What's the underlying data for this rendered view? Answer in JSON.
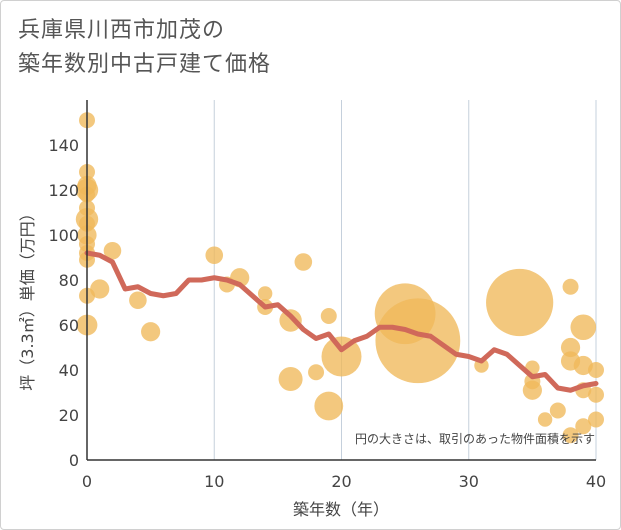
{
  "chart_data": {
    "type": "scatter",
    "title": [
      "兵庫県川西市加茂の",
      "築年数別中古戸建て価格"
    ],
    "xlabel": "築年数（年）",
    "ylabel": "坪（3.3㎡）単価（万円）",
    "xlim": [
      0,
      40
    ],
    "ylim": [
      0,
      160
    ],
    "x_ticks": [
      0,
      10,
      20,
      30,
      40
    ],
    "y_ticks": [
      0,
      20,
      40,
      60,
      80,
      100,
      120,
      140
    ],
    "grid": true,
    "note": "円の大きさは、取引のあった物件面積を示す",
    "colors": {
      "bubble": "#f0b85a",
      "trend": "#d0695a",
      "grid": "#c5d0dc",
      "axis": "#333333"
    },
    "bubbles": [
      {
        "x": 0,
        "y": 151,
        "s": 1
      },
      {
        "x": 0,
        "y": 128,
        "s": 1
      },
      {
        "x": 0,
        "y": 122,
        "s": 1.2
      },
      {
        "x": 0,
        "y": 120,
        "s": 1.4
      },
      {
        "x": 0,
        "y": 118,
        "s": 1
      },
      {
        "x": 0,
        "y": 112,
        "s": 1
      },
      {
        "x": 0,
        "y": 107,
        "s": 1.4
      },
      {
        "x": 0,
        "y": 105,
        "s": 1
      },
      {
        "x": 0,
        "y": 100,
        "s": 1.2
      },
      {
        "x": 0,
        "y": 96,
        "s": 1
      },
      {
        "x": 0,
        "y": 92,
        "s": 1
      },
      {
        "x": 0,
        "y": 89,
        "s": 1
      },
      {
        "x": 0,
        "y": 73,
        "s": 1
      },
      {
        "x": 0,
        "y": 60,
        "s": 1.3
      },
      {
        "x": 1,
        "y": 76,
        "s": 1.2
      },
      {
        "x": 2,
        "y": 93,
        "s": 1.1
      },
      {
        "x": 4,
        "y": 71,
        "s": 1.1
      },
      {
        "x": 5,
        "y": 57,
        "s": 1.2
      },
      {
        "x": 10,
        "y": 91,
        "s": 1.1
      },
      {
        "x": 11,
        "y": 78,
        "s": 1
      },
      {
        "x": 12,
        "y": 81,
        "s": 1.2
      },
      {
        "x": 14,
        "y": 74,
        "s": 0.9
      },
      {
        "x": 14,
        "y": 68,
        "s": 1
      },
      {
        "x": 16,
        "y": 62,
        "s": 1.4
      },
      {
        "x": 16,
        "y": 36,
        "s": 1.5
      },
      {
        "x": 17,
        "y": 88,
        "s": 1.1
      },
      {
        "x": 18,
        "y": 39,
        "s": 1
      },
      {
        "x": 19,
        "y": 64,
        "s": 1
      },
      {
        "x": 19,
        "y": 24,
        "s": 1.8
      },
      {
        "x": 20,
        "y": 46,
        "s": 2.5
      },
      {
        "x": 25,
        "y": 65,
        "s": 3.8
      },
      {
        "x": 26,
        "y": 53,
        "s": 5.3
      },
      {
        "x": 31,
        "y": 42,
        "s": 0.9
      },
      {
        "x": 34,
        "y": 70,
        "s": 4.2
      },
      {
        "x": 35,
        "y": 41,
        "s": 0.9
      },
      {
        "x": 35,
        "y": 35,
        "s": 1
      },
      {
        "x": 35,
        "y": 31,
        "s": 1.2
      },
      {
        "x": 36,
        "y": 18,
        "s": 0.9
      },
      {
        "x": 37,
        "y": 22,
        "s": 1
      },
      {
        "x": 38,
        "y": 77,
        "s": 1
      },
      {
        "x": 38,
        "y": 50,
        "s": 1.2
      },
      {
        "x": 38,
        "y": 44,
        "s": 1.2
      },
      {
        "x": 38,
        "y": 11,
        "s": 1
      },
      {
        "x": 39,
        "y": 59,
        "s": 1.6
      },
      {
        "x": 39,
        "y": 42,
        "s": 1.2
      },
      {
        "x": 39,
        "y": 31,
        "s": 1
      },
      {
        "x": 39,
        "y": 15,
        "s": 1
      },
      {
        "x": 40,
        "y": 40,
        "s": 1
      },
      {
        "x": 40,
        "y": 29,
        "s": 1
      },
      {
        "x": 40,
        "y": 18,
        "s": 1
      }
    ],
    "trend": {
      "x": [
        0,
        1,
        2,
        3,
        4,
        5,
        6,
        7,
        8,
        9,
        10,
        11,
        12,
        13,
        14,
        15,
        16,
        17,
        18,
        19,
        20,
        21,
        22,
        23,
        24,
        25,
        26,
        27,
        28,
        29,
        30,
        31,
        32,
        33,
        34,
        35,
        36,
        37,
        38,
        39,
        40
      ],
      "y": [
        92,
        91,
        88,
        76,
        77,
        74,
        73,
        74,
        80,
        80,
        81,
        80,
        78,
        73,
        68,
        69,
        64,
        58,
        54,
        56,
        49,
        53,
        55,
        59,
        59,
        58,
        56,
        55,
        51,
        47,
        46,
        44,
        49,
        47,
        42,
        37,
        38,
        32,
        31,
        33,
        34
      ]
    }
  }
}
